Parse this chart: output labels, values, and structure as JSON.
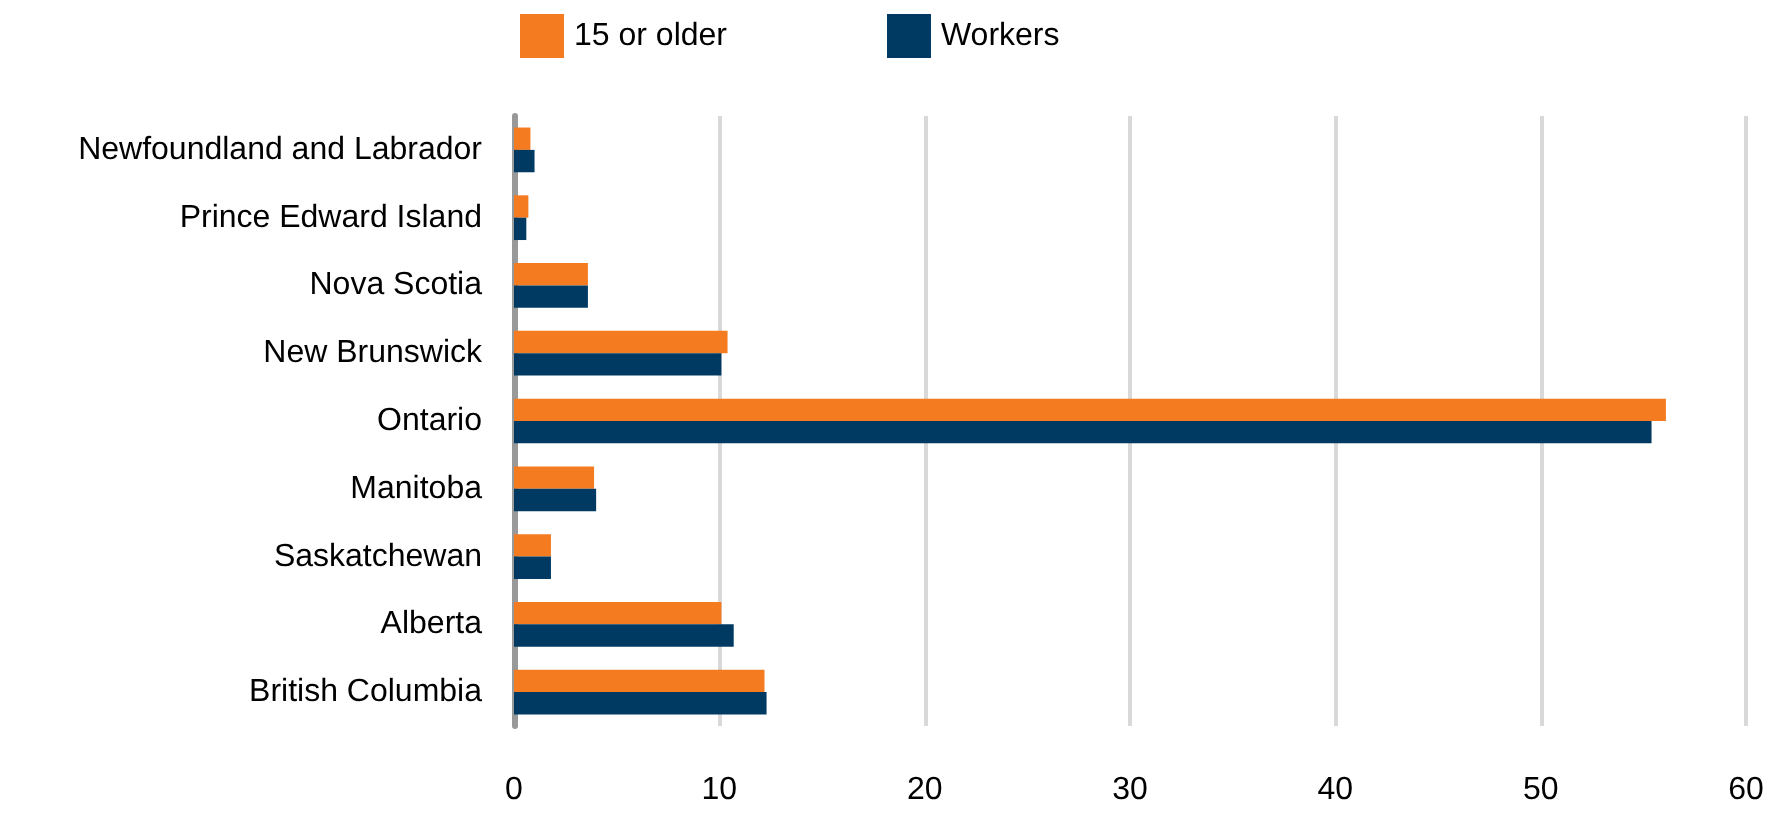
{
  "chart_data": {
    "type": "bar",
    "orientation": "horizontal",
    "categories": [
      "Newfoundland and Labrador",
      "Prince Edward Island",
      "Nova Scotia",
      "New Brunswick",
      "Ontario",
      "Manitoba",
      "Saskatchewan",
      "Alberta",
      "British Columbia"
    ],
    "series": [
      {
        "name": "15 or older",
        "color": "#f47b20",
        "values": [
          0.8,
          0.7,
          3.6,
          10.4,
          56.1,
          3.9,
          1.8,
          10.1,
          12.2
        ]
      },
      {
        "name": "Workers",
        "color": "#003a63",
        "values": [
          1.0,
          0.6,
          3.6,
          10.1,
          55.4,
          4.0,
          1.8,
          10.7,
          12.3
        ]
      }
    ],
    "xlim": [
      0,
      60
    ],
    "xticks": [
      0,
      10,
      20,
      30,
      40,
      50,
      60
    ],
    "grid": "x",
    "legend": "top"
  }
}
